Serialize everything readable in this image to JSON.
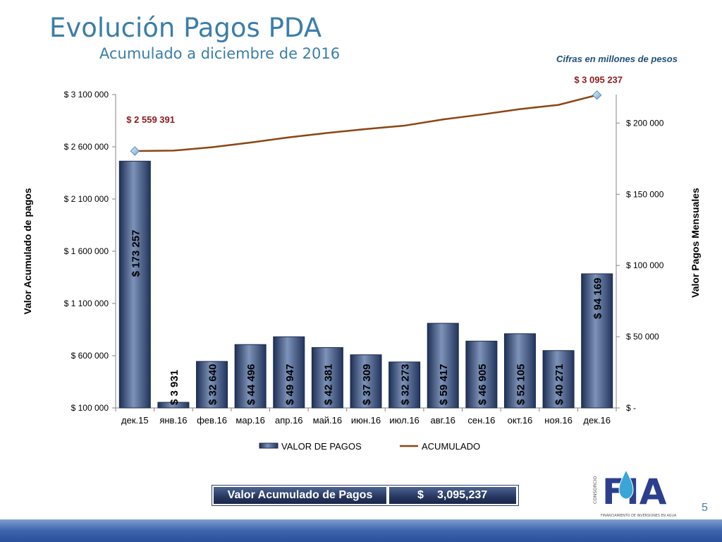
{
  "header": {
    "title": "Evolución Pagos PDA",
    "subtitle": "Acumulado a diciembre de 2016",
    "note": "Cifras en millones de pesos"
  },
  "chart_data": {
    "type": "bar",
    "categories": [
      "дек.15",
      "янв.16",
      "фев.16",
      "мар.16",
      "апр.16",
      "май.16",
      "июн.16",
      "июл.16",
      "авг.16",
      "сен.16",
      "окт.16",
      "ноя.16",
      "дек.16"
    ],
    "series": [
      {
        "name": "VALOR DE PAGOS",
        "type": "bar",
        "axis": "right",
        "values": [
          173257,
          3931,
          32640,
          44496,
          49947,
          42381,
          37309,
          32273,
          59417,
          46905,
          52105,
          40271,
          94169
        ],
        "labels": [
          "$ 173 257",
          "$ 3 931",
          "$ 32 640",
          "$ 44 496",
          "$ 49 947",
          "$ 42 381",
          "$ 37 309",
          "$ 32 273",
          "$ 59 417",
          "$ 46 905",
          "$ 52 105",
          "$ 40 271",
          "$ 94 169"
        ],
        "color": "#3a5586"
      },
      {
        "name": "ACUMULADO",
        "type": "line",
        "axis": "left",
        "values": [
          2559391,
          2563322,
          2595962,
          2640458,
          2690405,
          2732786,
          2770095,
          2802368,
          2861785,
          2908690,
          2960795,
          3001066,
          3095237
        ],
        "color": "#8b4513"
      }
    ],
    "point_labels": [
      {
        "index": 0,
        "text": "$ 2 559 391"
      },
      {
        "index": 12,
        "text": "$ 3 095 237"
      }
    ],
    "y_left": {
      "label": "Valor Acumulado de pagos",
      "min": 100000,
      "max": 3100000,
      "ticks": [
        100000,
        600000,
        1100000,
        1600000,
        2100000,
        2600000,
        3100000
      ],
      "tick_labels": [
        "$ 100 000",
        "$ 600 000",
        "$ 1 100 000",
        "$ 1 600 000",
        "$ 2 100 000",
        "$ 2 600 000",
        "$ 3 100 000"
      ]
    },
    "y_right": {
      "label": "Valor Pagos Mensuales",
      "min": 0,
      "max": 220000,
      "ticks": [
        0,
        50000,
        100000,
        150000,
        200000
      ],
      "tick_labels": [
        "$ -",
        "$ 50 000",
        "$ 100 000",
        "$ 150 000",
        "$ 200 000"
      ]
    },
    "legend": {
      "position": "bottom",
      "items": [
        "VALOR DE PAGOS",
        "ACUMULADO"
      ]
    },
    "grid": false
  },
  "summary": {
    "label": "Valor Acumulado de Pagos",
    "currency": "$",
    "value": "3,095,237"
  },
  "logo": {
    "side_text": "CONSORCIO",
    "letters": "FIA",
    "tagline": "FINANCIAMIENTO DE INVERSIONES EN AGUA"
  },
  "page_number": "5",
  "colors": {
    "title": "#3b7ea8",
    "bar": "#3a5586",
    "line": "#8b4513",
    "point_label": "#8b1a1a",
    "footer": "#3d64ad"
  }
}
